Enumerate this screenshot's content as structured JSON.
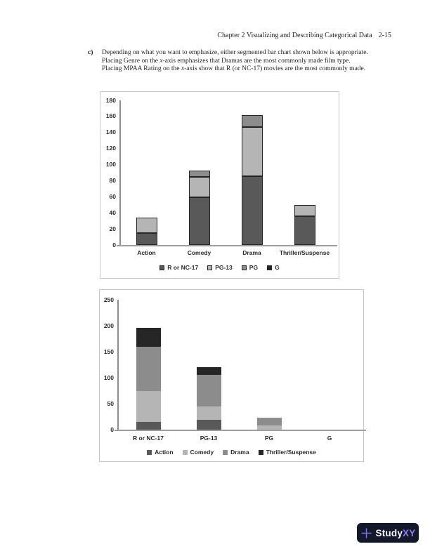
{
  "page": {
    "header": {
      "text": "Chapter 2 Visualizing and Describing Categorical Data",
      "page_number": "2-15"
    },
    "item_label": "c)",
    "paragraph_segments": [
      {
        "t": "Depending on what you want to emphasize, either segmented bar chart shown below is appropriate. Placing Genre on the ",
        "i": false
      },
      {
        "t": "x",
        "i": true
      },
      {
        "t": "-axis emphasizes that Dramas are the most commonly made film type. Placing MPAA Rating on the ",
        "i": false
      },
      {
        "t": "x",
        "i": true
      },
      {
        "t": "-axis show that R (or NC-17) movies are the most commonly made.",
        "i": false
      }
    ]
  },
  "colors": {
    "segment_dark_gray": "#595959",
    "segment_light_gray": "#b5b5b5",
    "segment_medium_gray": "#8c8c8c",
    "segment_black": "#262626",
    "chart_border": "#c9c9c9",
    "axis_gray": "#9e9e9e",
    "logo_background": "#14182b",
    "logo_accent": "#8b7af5"
  },
  "chart_data": [
    {
      "type": "bar",
      "stacked": true,
      "title": "",
      "xlabel": "",
      "ylabel": "",
      "categories": [
        "Action",
        "Comedy",
        "Drama",
        "Thriller/Suspense"
      ],
      "series": [
        {
          "name": "R or NC-17",
          "color": "#595959",
          "values": [
            15,
            59,
            86,
            36
          ]
        },
        {
          "name": "PG-13",
          "color": "#b5b5b5",
          "values": [
            19,
            26,
            61,
            14
          ]
        },
        {
          "name": "PG",
          "color": "#8c8c8c",
          "values": [
            0,
            8,
            15,
            0
          ]
        },
        {
          "name": "G",
          "color": "#262626",
          "values": [
            0,
            0,
            0,
            0
          ]
        }
      ],
      "ylim": [
        0,
        180
      ],
      "ytick_step": 20,
      "grid": false,
      "bar_outline": true,
      "legend_position": "bottom"
    },
    {
      "type": "bar",
      "stacked": true,
      "title": "",
      "xlabel": "",
      "ylabel": "",
      "categories": [
        "R or NC-17",
        "PG-13",
        "PG",
        "G"
      ],
      "series": [
        {
          "name": "Action",
          "color": "#595959",
          "values": [
            15,
            19,
            0,
            0
          ]
        },
        {
          "name": "Comedy",
          "color": "#b5b5b5",
          "values": [
            59,
            26,
            8,
            0
          ]
        },
        {
          "name": "Drama",
          "color": "#8c8c8c",
          "values": [
            86,
            61,
            15,
            0
          ]
        },
        {
          "name": "Thriller/Suspense",
          "color": "#262626",
          "values": [
            36,
            14,
            0,
            0
          ]
        }
      ],
      "ylim": [
        0,
        250
      ],
      "ytick_step": 50,
      "grid": false,
      "bar_outline": false,
      "legend_position": "bottom"
    }
  ],
  "logo": {
    "icon": "plus-icon",
    "text_primary": "Study",
    "text_accent": "XY"
  }
}
